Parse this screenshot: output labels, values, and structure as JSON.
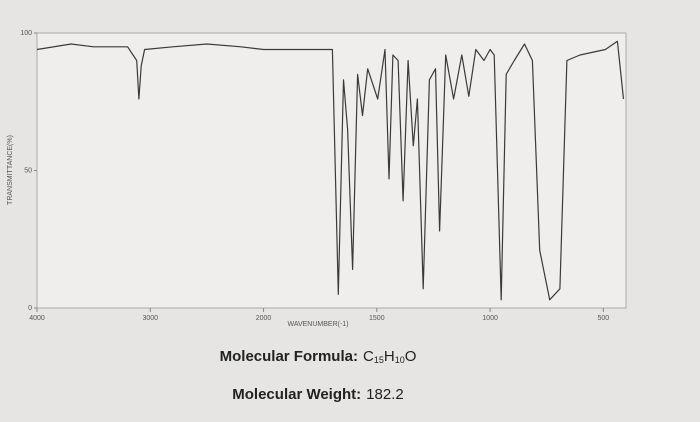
{
  "chart_data": {
    "type": "line",
    "xlabel": "WAVENUMBER(-1)",
    "ylabel": "TRANSMITTANCE(%)",
    "x": [
      4000,
      3700,
      3500,
      3200,
      3120,
      3100,
      3080,
      3050,
      2800,
      2500,
      2200,
      2000,
      1800,
      1696,
      1670,
      1647,
      1629,
      1607,
      1585,
      1563,
      1540,
      1496,
      1464,
      1446,
      1429,
      1406,
      1384,
      1362,
      1339,
      1321,
      1295,
      1268,
      1241,
      1223,
      1196,
      1161,
      1125,
      1094,
      1063,
      1027,
      1000,
      982,
      951,
      929,
      893,
      848,
      813,
      781,
      737,
      692,
      661,
      603,
      491,
      438,
      411
    ],
    "values": [
      94,
      96,
      95,
      95,
      90,
      76,
      88,
      94,
      95,
      96,
      95,
      94,
      94,
      94,
      5,
      83,
      65,
      14,
      85,
      70,
      87,
      76,
      94,
      47,
      92,
      90,
      39,
      90,
      59,
      76,
      7,
      83,
      87,
      28,
      92,
      76,
      92,
      77,
      94,
      90,
      94,
      92,
      3,
      85,
      90,
      96,
      90,
      21,
      3,
      7,
      90,
      92,
      94,
      97,
      76
    ],
    "color": "#3a3a3a",
    "xlim": [
      4000,
      400
    ],
    "xticks": [
      4000,
      3000,
      2000,
      1500,
      1000,
      500
    ],
    "x_scale_break": 2000,
    "x_scale_factor": 2,
    "ylim": [
      0,
      100
    ],
    "yticks": [
      0,
      50,
      100
    ],
    "formula_label": "Molecular Formula:",
    "formula": [
      {
        "text": "C",
        "sub": "15"
      },
      {
        "text": "H",
        "sub": "10"
      },
      {
        "text": "O"
      }
    ],
    "weight_label": "Molecular Weight:",
    "weight": 182.2
  }
}
